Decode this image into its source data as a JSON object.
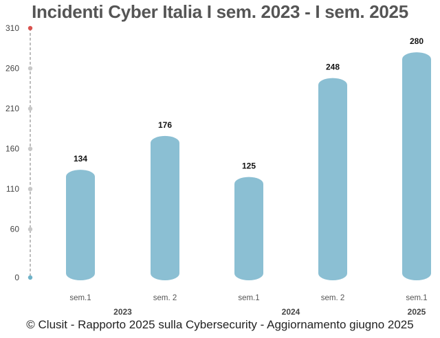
{
  "chart_data": {
    "type": "bar",
    "title": "Incidenti Cyber Italia I sem. 2023 - I sem. 2025",
    "categories": [
      "sem.1",
      "sem. 2",
      "sem.1",
      "sem. 2",
      "sem.1"
    ],
    "groups": [
      {
        "label": "2023",
        "span": [
          0,
          1
        ]
      },
      {
        "label": "2024",
        "span": [
          2,
          3
        ]
      },
      {
        "label": "2025",
        "span": [
          4,
          4
        ]
      }
    ],
    "values": [
      134,
      176,
      125,
      248,
      280
    ],
    "ylim": [
      0,
      310
    ],
    "yticks": [
      0,
      60,
      110,
      160,
      210,
      260,
      310
    ],
    "xlabel": "",
    "ylabel": "",
    "grid": false,
    "colors": {
      "bar": "#8bbfd3",
      "axis_top": "#d9534f",
      "axis_bottom": "#6fb3c9",
      "axis_dot": "#c8c8c8"
    }
  },
  "footer": "© Clusit - Rapporto 2025 sulla Cybersecurity - Aggiornamento giugno 2025"
}
